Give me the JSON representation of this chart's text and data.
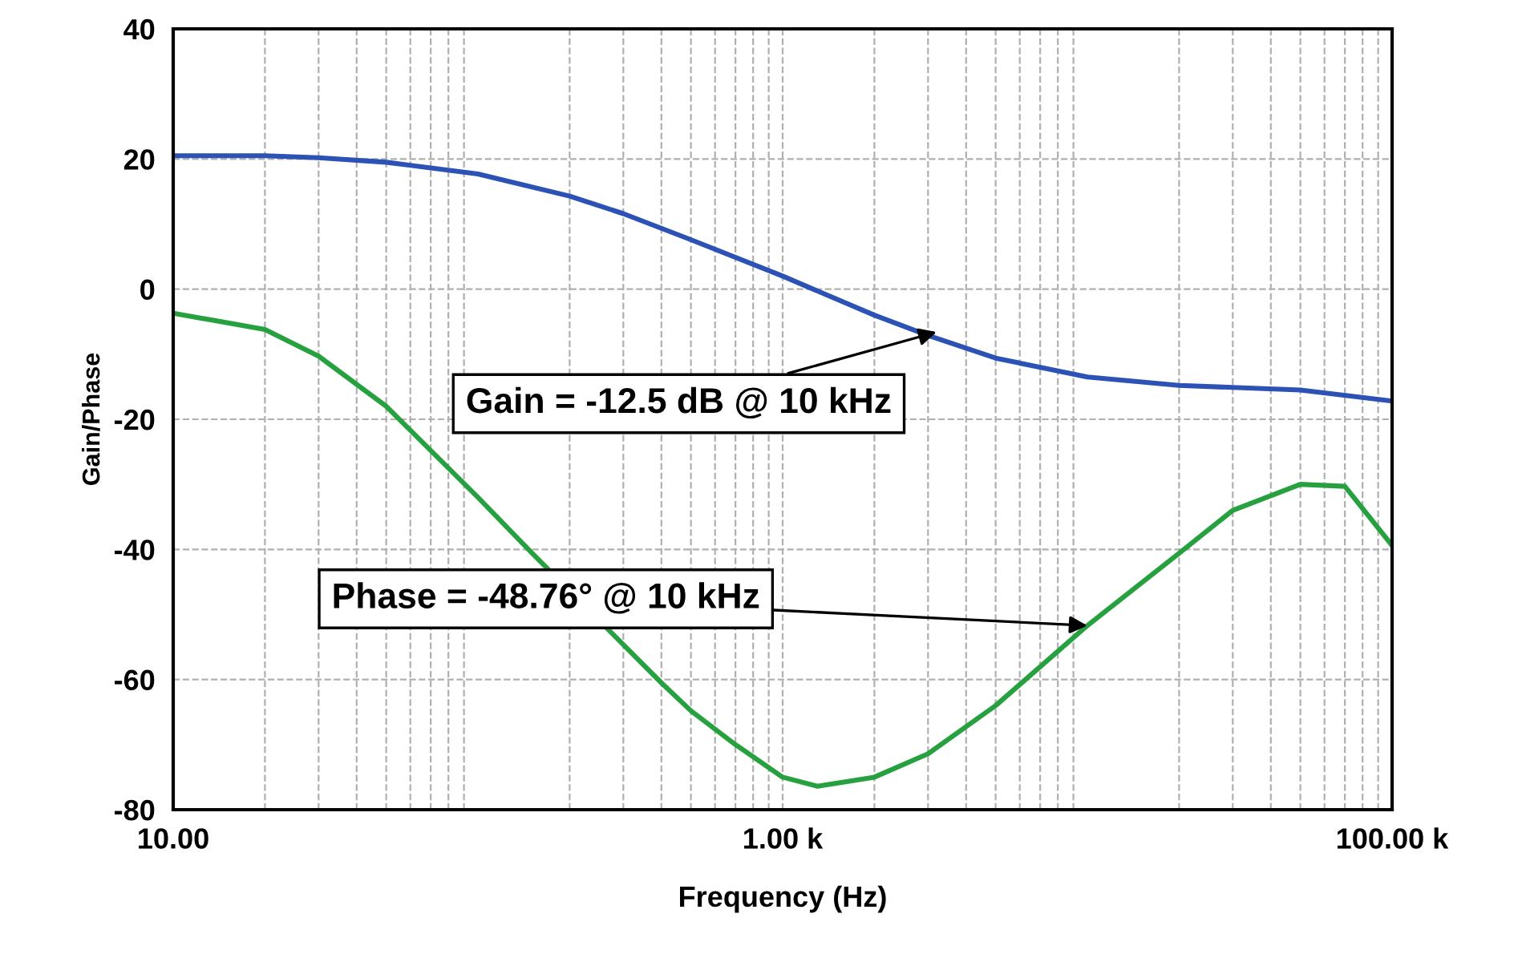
{
  "chart_data": {
    "type": "line",
    "xlabel": "Frequency (Hz)",
    "ylabel": "Gain/Phase",
    "log": "x",
    "grid": true,
    "line_style": "solid",
    "marker": "none",
    "xlim": [
      10,
      100000
    ],
    "xticks": [
      {
        "value": 10,
        "label": "10.00"
      },
      {
        "value": 1000,
        "label": "1.00 k"
      },
      {
        "value": 100000,
        "label": "100.00 k"
      }
    ],
    "ylim": [
      -80,
      40
    ],
    "yticks": [
      -80,
      -60,
      -40,
      -20,
      0,
      20,
      40
    ],
    "series": [
      {
        "color": "#2b52b4",
        "x": [
          10,
          20,
          30,
          50,
          100,
          200,
          300,
          500,
          1000,
          2000,
          3000,
          5000,
          10000,
          20000,
          50000,
          100000
        ],
        "values": [
          20.5,
          20.5,
          20.2,
          19.5,
          17.7,
          14.3,
          11.6,
          7.6,
          2,
          -4,
          -7.1,
          -10.6,
          -13.5,
          -14.8,
          -15.5,
          -17.2
        ]
      },
      {
        "color": "#27a040",
        "x": [
          10,
          20,
          30,
          50,
          100,
          150,
          400,
          500,
          700,
          1000,
          1300,
          2000,
          3000,
          5000,
          10000,
          20000,
          30000,
          50000,
          70000,
          100000
        ],
        "values": [
          -3.7,
          -6.2,
          -10.3,
          -18,
          -32,
          -40.5,
          -60.5,
          -64.8,
          -70,
          -75,
          -76.4,
          -75,
          -71.4,
          -64,
          -51.7,
          -40.6,
          -34,
          -30,
          -30.3,
          -39.4
        ]
      }
    ],
    "annotations": [
      {
        "text": "Gain = -12.5 dB @ 10 kHz",
        "x": 3200,
        "y": -6.6
      },
      {
        "text": "Phase = -48.76° @ 10 kHz",
        "x": 10000,
        "y": -51.7
      }
    ]
  }
}
